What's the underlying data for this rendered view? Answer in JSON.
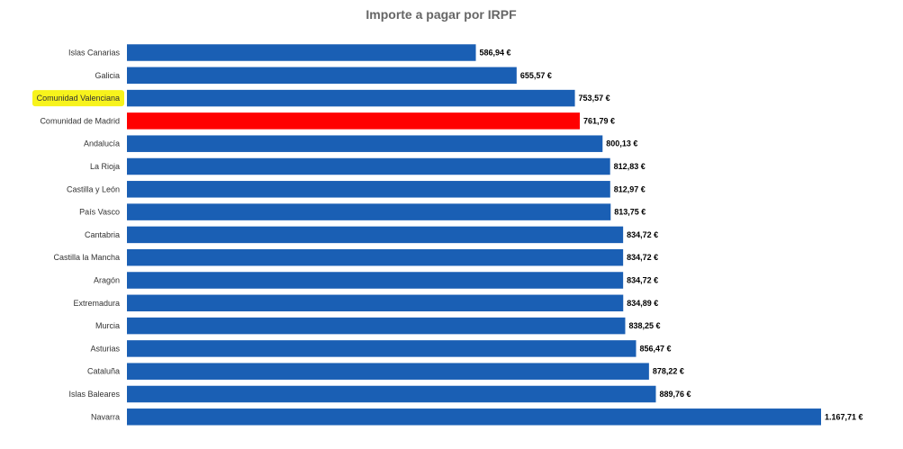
{
  "chart_data": {
    "type": "bar",
    "orientation": "horizontal",
    "title": "Importe a pagar por IRPF",
    "xlabel": "",
    "ylabel": "",
    "categories": [
      "Islas Canarias",
      "Galicia",
      "Comunidad Valenciana",
      "Comunidad de Madrid",
      "Andalucía",
      "La Rioja",
      "Castilla y León",
      "País Vasco",
      "Cantabria",
      "Castilla la Mancha",
      "Aragón",
      "Extremadura",
      "Murcia",
      "Asturias",
      "Cataluña",
      "Islas Baleares",
      "Navarra"
    ],
    "values": [
      586.94,
      655.57,
      753.57,
      761.79,
      800.13,
      812.83,
      812.97,
      813.75,
      834.72,
      834.72,
      834.72,
      834.89,
      838.25,
      856.47,
      878.22,
      889.76,
      1167.71
    ],
    "value_labels": [
      "586,94 €",
      "655,57 €",
      "753,57 €",
      "761,79 €",
      "800,13 €",
      "812,83 €",
      "812,97 €",
      "813,75 €",
      "834,72 €",
      "834,72 €",
      "834,72 €",
      "834,89 €",
      "838,25 €",
      "856,47 €",
      "878,22 €",
      "889,76 €",
      "1.167,71 €"
    ],
    "xlim": [
      0,
      1167.71
    ],
    "grid": false,
    "legend": "none",
    "colors": {
      "default_bar": "#1a5fb4",
      "highlight_bar": "#ff0000",
      "highlight_label_marker": "#f7f31c",
      "title_text": "#666666"
    },
    "highlighted_bar": "Comunidad de Madrid",
    "highlighted_label": "Comunidad Valenciana"
  }
}
